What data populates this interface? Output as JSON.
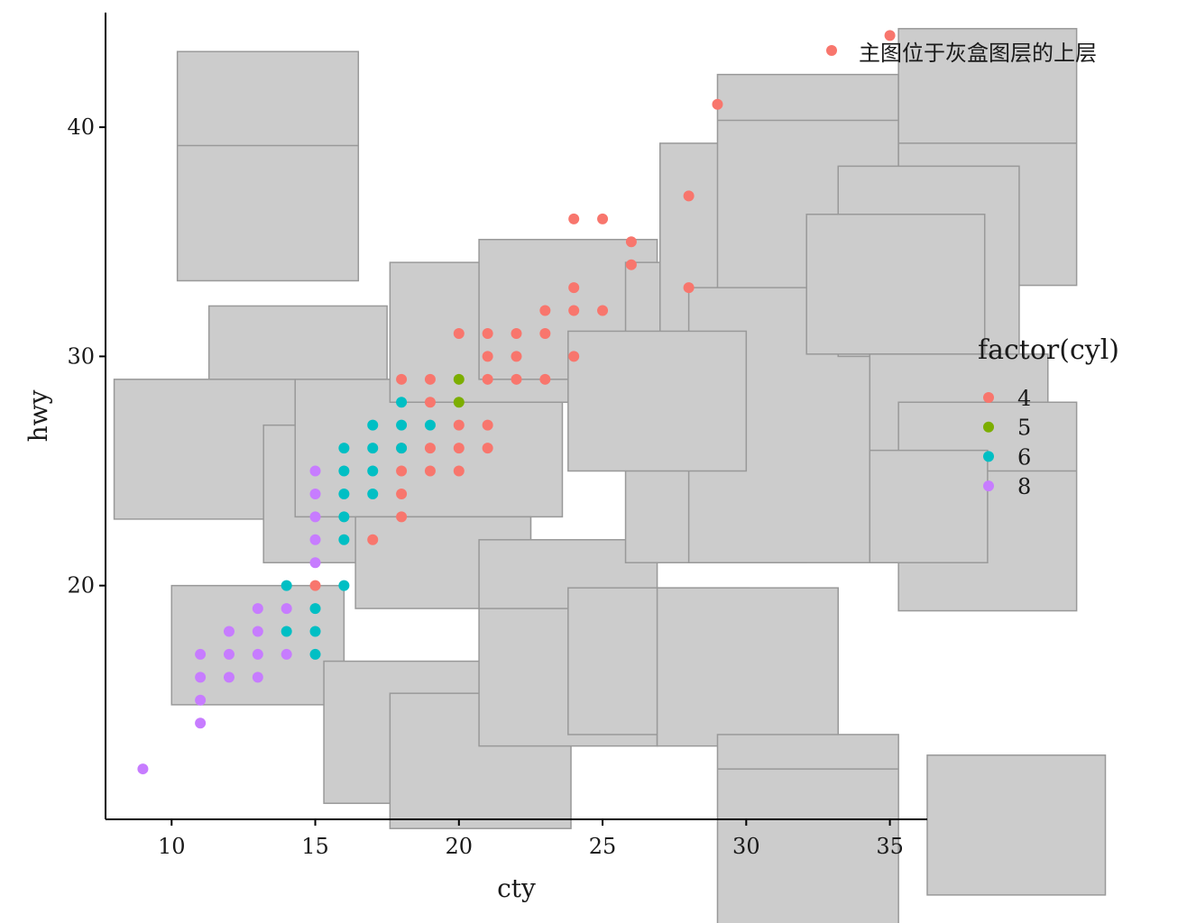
{
  "chart_data": {
    "type": "scatter",
    "xlabel": "cty",
    "ylabel": "hwy",
    "xlim": [
      7.7,
      36.3
    ],
    "ylim": [
      9.8,
      45.0
    ],
    "x_ticks": [
      10,
      15,
      20,
      25,
      30,
      35
    ],
    "y_ticks": [
      20,
      30,
      40
    ],
    "x_tick_labels": [
      "10",
      "15",
      "20",
      "25",
      "30",
      "35"
    ],
    "y_tick_labels": [
      "20",
      "30",
      "40"
    ],
    "grid": false,
    "legend_position": "right",
    "legend": {
      "title": "factor(cyl)",
      "entries": [
        {
          "label": "4",
          "color": "#F8766D"
        },
        {
          "label": "5",
          "color": "#7CAE00"
        },
        {
          "label": "6",
          "color": "#00BFC4"
        },
        {
          "label": "8",
          "color": "#C77CFF"
        }
      ]
    },
    "annotation": {
      "label": "主图位于灰盒图层的上层",
      "color": "#F8766D"
    },
    "background_box_color": "#cccccc",
    "background_box_border": "#999999",
    "background_boxes": [
      {
        "x": [
          10.2,
          16.5
        ],
        "y": [
          33.3,
          43.3
        ],
        "mid": 39.2
      },
      {
        "x": [
          11.3,
          17.5
        ],
        "y": [
          24.2,
          32.2
        ],
        "mid": 27.0
      },
      {
        "x": [
          8.0,
          14.3
        ],
        "y": [
          22.9,
          29.0
        ]
      },
      {
        "x": [
          10.0,
          16.0
        ],
        "y": [
          14.8,
          20.0
        ]
      },
      {
        "x": [
          13.2,
          22.5
        ],
        "y": [
          21.0,
          27.0
        ]
      },
      {
        "x": [
          14.3,
          23.6
        ],
        "y": [
          23.0,
          29.0
        ]
      },
      {
        "x": [
          16.4,
          22.5
        ],
        "y": [
          19.0,
          23.0
        ]
      },
      {
        "x": [
          15.3,
          21.6
        ],
        "y": [
          10.5,
          16.7
        ]
      },
      {
        "x": [
          17.6,
          23.9
        ],
        "y": [
          9.4,
          15.3
        ]
      },
      {
        "x": [
          17.6,
          23.9
        ],
        "y": [
          28.0,
          34.1
        ]
      },
      {
        "x": [
          20.7,
          26.9
        ],
        "y": [
          29.0,
          35.1
        ]
      },
      {
        "x": [
          20.7,
          26.9
        ],
        "y": [
          13.0,
          22.0
        ],
        "mid": 19.0
      },
      {
        "x": [
          23.8,
          30.1
        ],
        "y": [
          13.5,
          19.9
        ]
      },
      {
        "x": [
          26.9,
          33.2
        ],
        "y": [
          13.0,
          19.9
        ]
      },
      {
        "x": [
          25.8,
          32.1
        ],
        "y": [
          21.0,
          34.1
        ]
      },
      {
        "x": [
          27.0,
          33.3
        ],
        "y": [
          30.0,
          39.3
        ]
      },
      {
        "x": [
          29.0,
          35.3
        ],
        "y": [
          30.0,
          42.3
        ],
        "mid": 40.3
      },
      {
        "x": [
          28.0,
          35.5
        ],
        "y": [
          21.0,
          33.0
        ]
      },
      {
        "x": [
          35.3,
          41.5
        ],
        "y": [
          33.1,
          44.3
        ],
        "mid": 39.3
      },
      {
        "x": [
          33.2,
          39.5
        ],
        "y": [
          30.0,
          38.3
        ]
      },
      {
        "x": [
          32.1,
          38.3
        ],
        "y": [
          30.1,
          36.2
        ]
      },
      {
        "x": [
          34.3,
          40.5
        ],
        "y": [
          21.0,
          30.1
        ]
      },
      {
        "x": [
          35.3,
          41.5
        ],
        "y": [
          18.9,
          28.0
        ],
        "mid": 25.0
      },
      {
        "x": [
          34.3,
          38.4
        ],
        "y": [
          21.0,
          25.9
        ]
      },
      {
        "x": [
          23.8,
          30.0
        ],
        "y": [
          25.0,
          31.1
        ]
      },
      {
        "x": [
          29.0,
          35.3
        ],
        "y": [
          5.0,
          13.5
        ],
        "mid": 12.0
      },
      {
        "x": [
          36.3,
          42.5
        ],
        "y": [
          6.5,
          12.6
        ]
      }
    ],
    "series": [
      {
        "name": "4",
        "color": "#F8766D",
        "points": [
          [
            35,
            44
          ],
          [
            29,
            41
          ],
          [
            28,
            37
          ],
          [
            24,
            36
          ],
          [
            25,
            36
          ],
          [
            26,
            35
          ],
          [
            26,
            34
          ],
          [
            24,
            33
          ],
          [
            28,
            33
          ],
          [
            23,
            32
          ],
          [
            24,
            32
          ],
          [
            25,
            32
          ],
          [
            20,
            31
          ],
          [
            21,
            31
          ],
          [
            22,
            31
          ],
          [
            23,
            31
          ],
          [
            21,
            30
          ],
          [
            22,
            30
          ],
          [
            24,
            30
          ],
          [
            18,
            29
          ],
          [
            19,
            29
          ],
          [
            21,
            29
          ],
          [
            22,
            29
          ],
          [
            23,
            29
          ],
          [
            19,
            28
          ],
          [
            20,
            27
          ],
          [
            21,
            27
          ],
          [
            18,
            26
          ],
          [
            19,
            26
          ],
          [
            20,
            26
          ],
          [
            21,
            26
          ],
          [
            18,
            25
          ],
          [
            19,
            25
          ],
          [
            20,
            25
          ],
          [
            18,
            24
          ],
          [
            18,
            23
          ],
          [
            17,
            22
          ],
          [
            15,
            20
          ]
        ]
      },
      {
        "name": "5",
        "color": "#7CAE00",
        "points": [
          [
            20,
            29
          ],
          [
            20,
            28
          ]
        ]
      },
      {
        "name": "6",
        "color": "#00BFC4",
        "points": [
          [
            18,
            28
          ],
          [
            17,
            27
          ],
          [
            18,
            27
          ],
          [
            19,
            27
          ],
          [
            16,
            26
          ],
          [
            17,
            26
          ],
          [
            18,
            26
          ],
          [
            16,
            25
          ],
          [
            17,
            25
          ],
          [
            16,
            24
          ],
          [
            17,
            24
          ],
          [
            16,
            23
          ],
          [
            16,
            22
          ],
          [
            14,
            20
          ],
          [
            16,
            20
          ],
          [
            15,
            19
          ],
          [
            14,
            18
          ],
          [
            15,
            18
          ],
          [
            15,
            17
          ]
        ]
      },
      {
        "name": "8",
        "color": "#C77CFF",
        "points": [
          [
            15,
            25
          ],
          [
            15,
            24
          ],
          [
            15,
            23
          ],
          [
            15,
            22
          ],
          [
            15,
            21
          ],
          [
            13,
            19
          ],
          [
            14,
            19
          ],
          [
            12,
            18
          ],
          [
            13,
            18
          ],
          [
            11,
            17
          ],
          [
            12,
            17
          ],
          [
            13,
            17
          ],
          [
            14,
            17
          ],
          [
            11,
            16
          ],
          [
            12,
            16
          ],
          [
            13,
            16
          ],
          [
            11,
            15
          ],
          [
            11,
            14
          ],
          [
            9,
            12
          ]
        ]
      }
    ]
  }
}
